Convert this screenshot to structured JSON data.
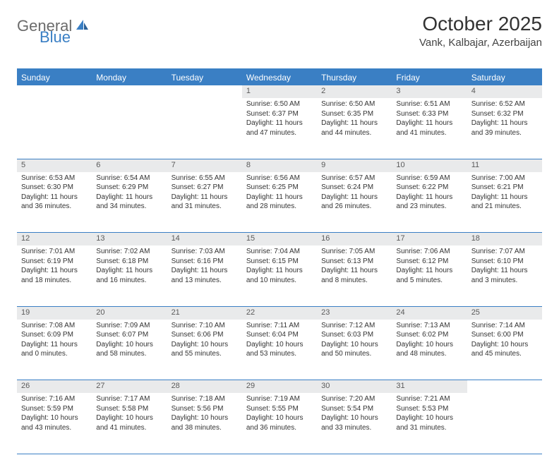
{
  "brand": {
    "part1": "General",
    "part2": "Blue"
  },
  "title": "October 2025",
  "location": "Vank, Kalbajar, Azerbaijan",
  "colors": {
    "accent": "#3a7fc4",
    "header_bg": "#3a7fc4",
    "header_text": "#ffffff",
    "daynum_bg": "#e9eaeb",
    "daynum_text": "#5a5a5a",
    "body_text": "#333333",
    "logo_gray": "#6b6b6b"
  },
  "day_headers": [
    "Sunday",
    "Monday",
    "Tuesday",
    "Wednesday",
    "Thursday",
    "Friday",
    "Saturday"
  ],
  "weeks": [
    [
      null,
      null,
      null,
      {
        "n": "1",
        "sunrise": "6:50 AM",
        "sunset": "6:37 PM",
        "daylight": "11 hours and 47 minutes."
      },
      {
        "n": "2",
        "sunrise": "6:50 AM",
        "sunset": "6:35 PM",
        "daylight": "11 hours and 44 minutes."
      },
      {
        "n": "3",
        "sunrise": "6:51 AM",
        "sunset": "6:33 PM",
        "daylight": "11 hours and 41 minutes."
      },
      {
        "n": "4",
        "sunrise": "6:52 AM",
        "sunset": "6:32 PM",
        "daylight": "11 hours and 39 minutes."
      }
    ],
    [
      {
        "n": "5",
        "sunrise": "6:53 AM",
        "sunset": "6:30 PM",
        "daylight": "11 hours and 36 minutes."
      },
      {
        "n": "6",
        "sunrise": "6:54 AM",
        "sunset": "6:29 PM",
        "daylight": "11 hours and 34 minutes."
      },
      {
        "n": "7",
        "sunrise": "6:55 AM",
        "sunset": "6:27 PM",
        "daylight": "11 hours and 31 minutes."
      },
      {
        "n": "8",
        "sunrise": "6:56 AM",
        "sunset": "6:25 PM",
        "daylight": "11 hours and 28 minutes."
      },
      {
        "n": "9",
        "sunrise": "6:57 AM",
        "sunset": "6:24 PM",
        "daylight": "11 hours and 26 minutes."
      },
      {
        "n": "10",
        "sunrise": "6:59 AM",
        "sunset": "6:22 PM",
        "daylight": "11 hours and 23 minutes."
      },
      {
        "n": "11",
        "sunrise": "7:00 AM",
        "sunset": "6:21 PM",
        "daylight": "11 hours and 21 minutes."
      }
    ],
    [
      {
        "n": "12",
        "sunrise": "7:01 AM",
        "sunset": "6:19 PM",
        "daylight": "11 hours and 18 minutes."
      },
      {
        "n": "13",
        "sunrise": "7:02 AM",
        "sunset": "6:18 PM",
        "daylight": "11 hours and 16 minutes."
      },
      {
        "n": "14",
        "sunrise": "7:03 AM",
        "sunset": "6:16 PM",
        "daylight": "11 hours and 13 minutes."
      },
      {
        "n": "15",
        "sunrise": "7:04 AM",
        "sunset": "6:15 PM",
        "daylight": "11 hours and 10 minutes."
      },
      {
        "n": "16",
        "sunrise": "7:05 AM",
        "sunset": "6:13 PM",
        "daylight": "11 hours and 8 minutes."
      },
      {
        "n": "17",
        "sunrise": "7:06 AM",
        "sunset": "6:12 PM",
        "daylight": "11 hours and 5 minutes."
      },
      {
        "n": "18",
        "sunrise": "7:07 AM",
        "sunset": "6:10 PM",
        "daylight": "11 hours and 3 minutes."
      }
    ],
    [
      {
        "n": "19",
        "sunrise": "7:08 AM",
        "sunset": "6:09 PM",
        "daylight": "11 hours and 0 minutes."
      },
      {
        "n": "20",
        "sunrise": "7:09 AM",
        "sunset": "6:07 PM",
        "daylight": "10 hours and 58 minutes."
      },
      {
        "n": "21",
        "sunrise": "7:10 AM",
        "sunset": "6:06 PM",
        "daylight": "10 hours and 55 minutes."
      },
      {
        "n": "22",
        "sunrise": "7:11 AM",
        "sunset": "6:04 PM",
        "daylight": "10 hours and 53 minutes."
      },
      {
        "n": "23",
        "sunrise": "7:12 AM",
        "sunset": "6:03 PM",
        "daylight": "10 hours and 50 minutes."
      },
      {
        "n": "24",
        "sunrise": "7:13 AM",
        "sunset": "6:02 PM",
        "daylight": "10 hours and 48 minutes."
      },
      {
        "n": "25",
        "sunrise": "7:14 AM",
        "sunset": "6:00 PM",
        "daylight": "10 hours and 45 minutes."
      }
    ],
    [
      {
        "n": "26",
        "sunrise": "7:16 AM",
        "sunset": "5:59 PM",
        "daylight": "10 hours and 43 minutes."
      },
      {
        "n": "27",
        "sunrise": "7:17 AM",
        "sunset": "5:58 PM",
        "daylight": "10 hours and 41 minutes."
      },
      {
        "n": "28",
        "sunrise": "7:18 AM",
        "sunset": "5:56 PM",
        "daylight": "10 hours and 38 minutes."
      },
      {
        "n": "29",
        "sunrise": "7:19 AM",
        "sunset": "5:55 PM",
        "daylight": "10 hours and 36 minutes."
      },
      {
        "n": "30",
        "sunrise": "7:20 AM",
        "sunset": "5:54 PM",
        "daylight": "10 hours and 33 minutes."
      },
      {
        "n": "31",
        "sunrise": "7:21 AM",
        "sunset": "5:53 PM",
        "daylight": "10 hours and 31 minutes."
      },
      null
    ]
  ],
  "labels": {
    "sunrise": "Sunrise:",
    "sunset": "Sunset:",
    "daylight": "Daylight:"
  }
}
